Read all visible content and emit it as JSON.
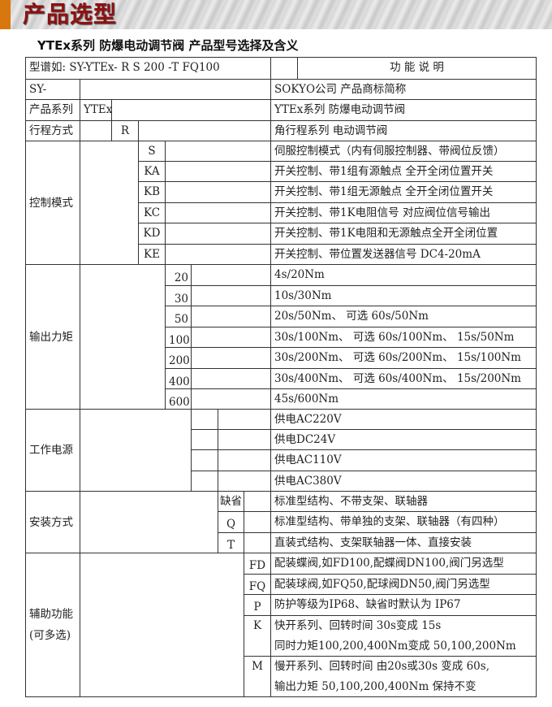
{
  "banner": {
    "title": "产品选型",
    "accent_color": "#d9770f",
    "title_color": "#8e1010"
  },
  "subtitle": "YTEx系列  防爆电动调节阀  产品型号选择及含义",
  "table": {
    "example": "型谱如:  SY-YTEx- R S 200 -T FQ100",
    "function_header": "功 能 说 明",
    "sy": {
      "label": "SY-",
      "desc": "SOKYO公司 产品商标简称"
    },
    "series": {
      "label": "产品系列",
      "code": "YTEx",
      "desc": "YTEx系列  防爆电动调节阀"
    },
    "stroke": {
      "label": "行程方式",
      "code": "R",
      "desc": "角行程系列  电动调节阀"
    },
    "control": {
      "label": "控制模式",
      "items": [
        {
          "code": "S",
          "desc": "伺服控制模式（内有伺服控制器、带阀位反馈）"
        },
        {
          "code": "KA",
          "desc": "开关控制、带1组有源触点  全开全闭位置开关"
        },
        {
          "code": "KB",
          "desc": "开关控制、带1组无源触点  全开全闭位置开关"
        },
        {
          "code": "KC",
          "desc": "开关控制、带1K电阻信号   对应阀位信号输出"
        },
        {
          "code": "KD",
          "desc": "开关控制、带1K电阻和无源触点全开全闭位置"
        },
        {
          "code": "KE",
          "desc": "开关控制、带位置发送器信号 DC4-20mA"
        }
      ]
    },
    "torque": {
      "label": "输出力矩",
      "items": [
        {
          "code": "20",
          "desc": "4s/20Nm"
        },
        {
          "code": "30",
          "desc": "10s/30Nm"
        },
        {
          "code": "50",
          "desc": "20s/50Nm、    可选 60s/50Nm"
        },
        {
          "code": "100",
          "desc": "30s/100Nm、 可选 60s/100Nm、   15s/50Nm"
        },
        {
          "code": "200",
          "desc": "30s/200Nm、 可选 60s/200Nm、   15s/100Nm"
        },
        {
          "code": "400",
          "desc": "30s/400Nm、 可选 60s/400Nm、   15s/200Nm"
        },
        {
          "code": "600",
          "desc": "45s/600Nm"
        }
      ]
    },
    "power": {
      "label": "工作电源",
      "items": [
        {
          "desc": "供电AC220V"
        },
        {
          "desc": "供电DC24V"
        },
        {
          "desc": "供电AC110V"
        },
        {
          "desc": "供电AC380V"
        }
      ]
    },
    "install": {
      "label": "安装方式",
      "items": [
        {
          "code": "缺省",
          "desc": "标准型结构、不带支架、联轴器"
        },
        {
          "code": "Q",
          "desc": "标准型结构、带单独的支架、联轴器（有四种）"
        },
        {
          "code": "T",
          "desc": "直装式结构、支架联轴器一体、直接安装"
        }
      ]
    },
    "aux": {
      "label": "辅助功能",
      "label2": "(可多选)",
      "items": [
        {
          "code": "FD",
          "desc": "配装蝶阀,如FD100,配蝶阀DN100,阀门另选型"
        },
        {
          "code": "FQ",
          "desc": "配装球阀,如FQ50,配球阀DN50,阀门另选型"
        },
        {
          "code": "P",
          "desc": "防护等级为IP68、缺省时默认为 IP67"
        },
        {
          "code": "K",
          "desc": "快开系列、回转时间 30s变成 15s",
          "desc2": "同时力矩100,200,400Nm变成 50,100,200Nm"
        },
        {
          "code": "M",
          "desc": "慢开系列、回转时间 由20s或30s 变成  60s,",
          "desc2": "输出力矩 50,100,200,400Nm 保持不变"
        }
      ]
    }
  }
}
